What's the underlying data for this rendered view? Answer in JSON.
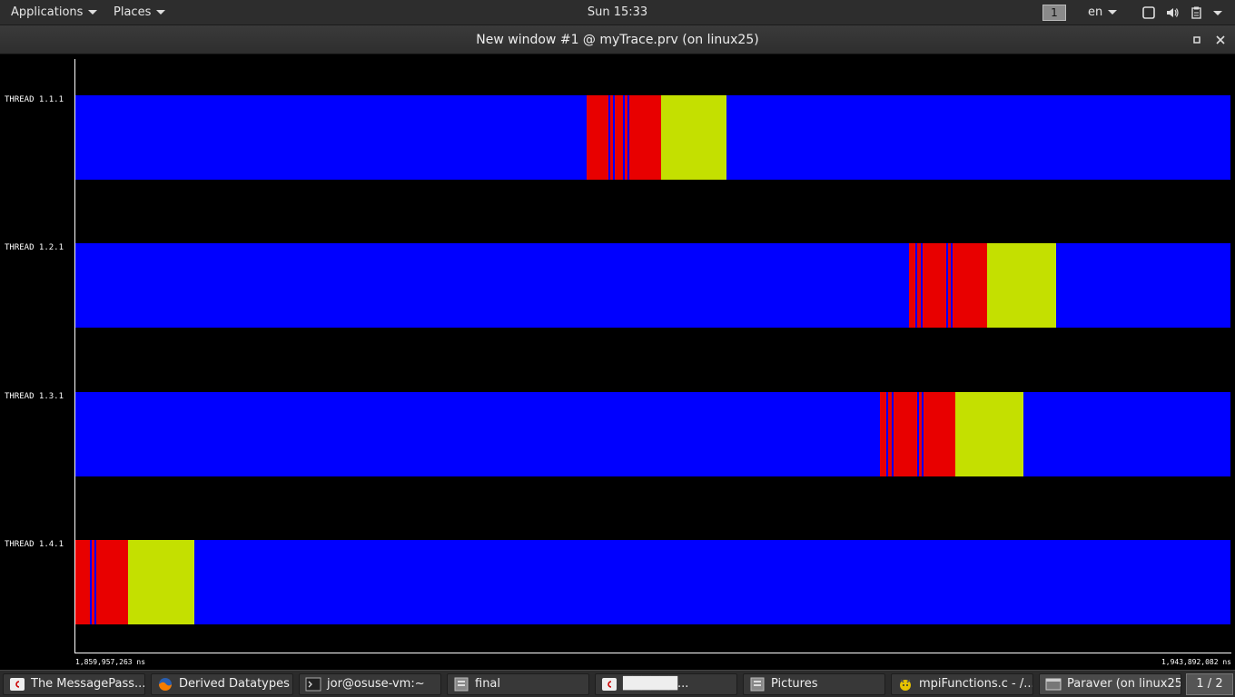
{
  "top_panel": {
    "applications_label": "Applications",
    "places_label": "Places",
    "clock": "Sun 15:33",
    "workspace": "1",
    "language": "en"
  },
  "window": {
    "title": "New window #1 @ myTrace.prv (on linux25)"
  },
  "colors": {
    "running": "#0000ff",
    "mpi_call": "#e80000",
    "sync": "#c4e000",
    "background": "#000000"
  },
  "timeline": {
    "start_time": "1,859,957,263 ns",
    "end_time": "1,943,892,082 ns",
    "threads": [
      {
        "label": "THREAD 1.1.1"
      },
      {
        "label": "THREAD 1.2.1"
      },
      {
        "label": "THREAD 1.3.1"
      },
      {
        "label": "THREAD 1.4.1"
      }
    ]
  },
  "taskbar": {
    "items": [
      {
        "label": "The MessagePass...",
        "icon": "debian-icon"
      },
      {
        "label": "Derived Datatypes ...",
        "icon": "firefox-icon"
      },
      {
        "label": "jor@osuse-vm:~",
        "icon": "terminal-icon"
      },
      {
        "label": "final",
        "icon": "file-manager-icon"
      },
      {
        "label": "██████...",
        "icon": "debian-icon"
      },
      {
        "label": "Pictures",
        "icon": "file-manager-icon"
      },
      {
        "label": "mpiFunctions.c - /...",
        "icon": "editor-icon"
      },
      {
        "label": "Paraver (on linux25)",
        "icon": "window-icon"
      }
    ],
    "pager": "1 / 2"
  }
}
